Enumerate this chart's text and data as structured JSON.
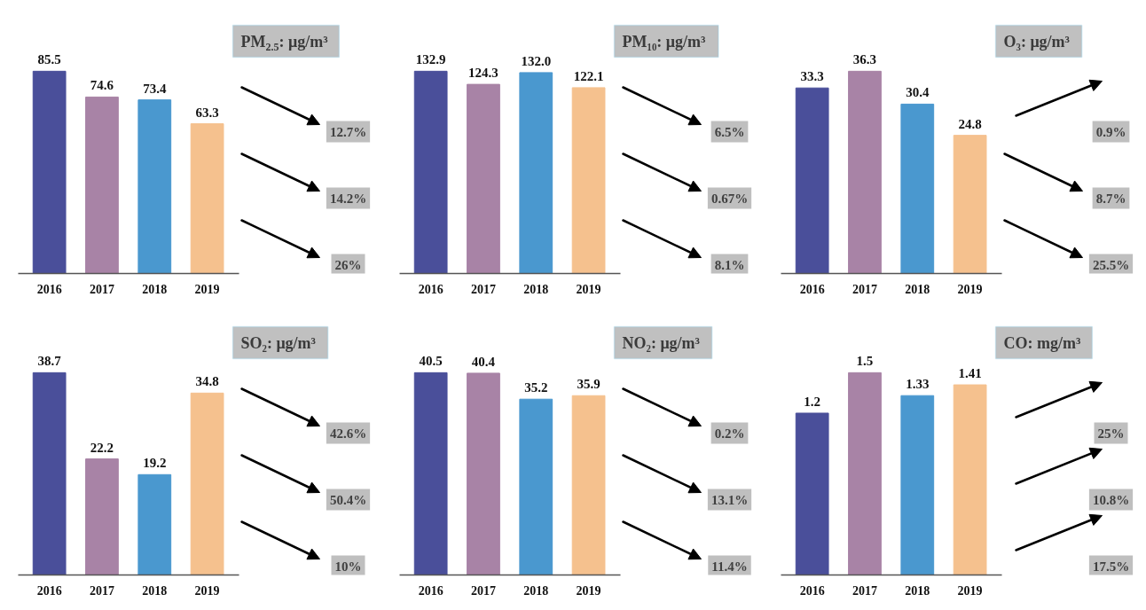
{
  "chart_data": [
    {
      "type": "bar",
      "title": "PM$_{2.5}$: μg/m³",
      "categories": [
        "2016",
        "2017",
        "2018",
        "2019"
      ],
      "values": [
        85.5,
        74.6,
        73.4,
        63.3
      ],
      "colors": [
        "#4a4f9a",
        "#a883a6",
        "#4a98cf",
        "#f5c18e"
      ],
      "data_labels": true,
      "annotations": [
        "12.7%",
        "14.2%",
        "26%"
      ]
    },
    {
      "type": "bar",
      "title": "PM₁₀: μg/m³",
      "categories": [
        "2016",
        "2017",
        "2018",
        "2019"
      ],
      "values": [
        132.9,
        124.3,
        132.0,
        122.1
      ],
      "value_labels": [
        "132.9",
        "124.3",
        "132.0",
        "122.1"
      ],
      "colors": [
        "#4a4f9a",
        "#a883a6",
        "#4a98cf",
        "#f5c18e"
      ],
      "annotations": [
        "6.5%",
        "0.67%",
        "8.1%"
      ]
    },
    {
      "type": "bar",
      "title": "O₃: μg/m³",
      "categories": [
        "2016",
        "2017",
        "2018",
        "2019"
      ],
      "values": [
        33.3,
        36.3,
        30.4,
        24.8
      ],
      "colors": [
        "#4a4f9a",
        "#a883a6",
        "#4a98cf",
        "#f5c18e"
      ],
      "data_labels": true,
      "annotations": [
        "0.9%",
        "8.7%",
        "25.5%"
      ]
    },
    {
      "type": "bar",
      "title": "SO₂: μg/m³",
      "categories": [
        "2016",
        "2017",
        "2018",
        "2019"
      ],
      "values": [
        38.7,
        22.2,
        19.2,
        34.8
      ],
      "colors": [
        "#4a4f9a",
        "#a883a6",
        "#4a98cf",
        "#f5c18e"
      ],
      "data_labels": true,
      "annotations": [
        "42.6%",
        "50.4%",
        "10%"
      ]
    },
    {
      "type": "bar",
      "title": "NO₂: μg/m³",
      "categories": [
        "2016",
        "2017",
        "2018",
        "2019"
      ],
      "values": [
        40.5,
        40.4,
        35.2,
        35.9
      ],
      "colors": [
        "#4a4f9a",
        "#a883a6",
        "#4a98cf",
        "#f5c18e"
      ],
      "data_labels": true,
      "annotations": [
        "0.2%",
        "13.1%",
        "11.4%"
      ]
    },
    {
      "type": "bar",
      "title": "CO: mg/m³",
      "categories": [
        "2016",
        "2017",
        "2018",
        "2019"
      ],
      "values": [
        1.2,
        1.5,
        1.33,
        1.41
      ],
      "colors": [
        "#4a4f9a",
        "#a883a6",
        "#4a98cf",
        "#f5c18e"
      ],
      "data_labels": true,
      "annotations": [
        "25%",
        "10.8%",
        "17.5%"
      ]
    }
  ]
}
